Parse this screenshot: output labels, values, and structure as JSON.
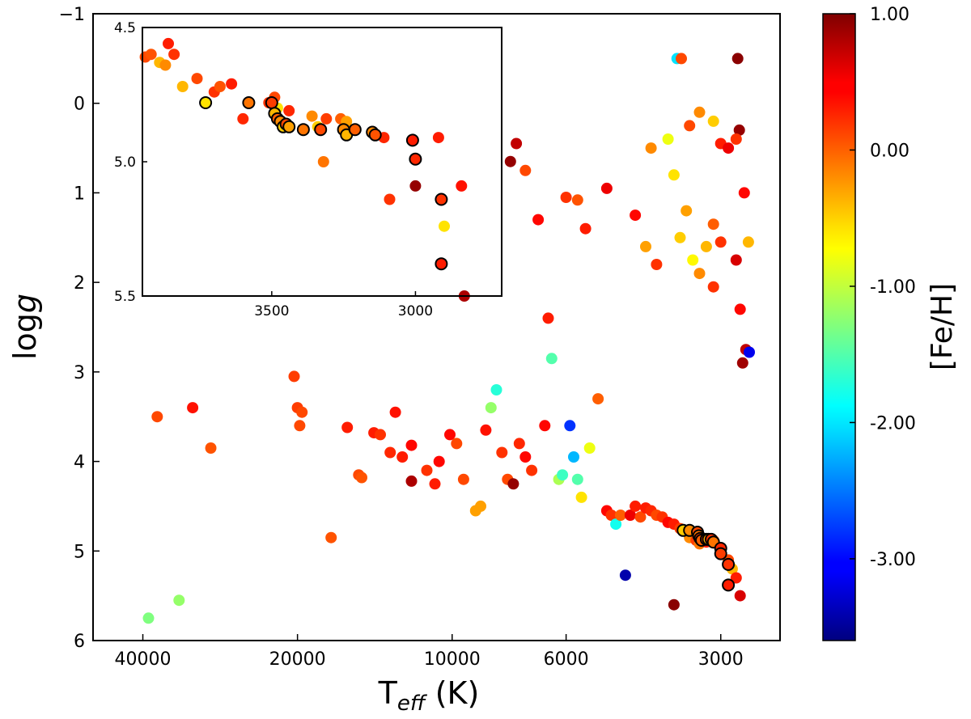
{
  "chart_data": [
    {
      "type": "scatter",
      "role": "main",
      "xlabel_main": "T",
      "xlabel_sub": "eff",
      "xlabel_unit": " (K)",
      "ylabel_prefix": "log",
      "ylabel_italic": "g",
      "x_scale": "log",
      "xlim": [
        50000,
        2300
      ],
      "ylim": [
        -1,
        6
      ],
      "y_inverted": true,
      "x_ticks": [
        {
          "value": 40000,
          "label": "40000"
        },
        {
          "value": 20000,
          "label": "20000"
        },
        {
          "value": 10000,
          "label": "10000"
        },
        {
          "value": 6000,
          "label": "6000"
        },
        {
          "value": 3000,
          "label": "3000"
        }
      ],
      "y_ticks": [
        {
          "value": -1,
          "label": "−1"
        },
        {
          "value": 0,
          "label": "0"
        },
        {
          "value": 1,
          "label": "1"
        },
        {
          "value": 2,
          "label": "2"
        },
        {
          "value": 3,
          "label": "3"
        },
        {
          "value": 4,
          "label": "4"
        },
        {
          "value": 5,
          "label": "5"
        },
        {
          "value": 6,
          "label": "6"
        }
      ],
      "series": [
        {
          "name": "stars",
          "columns": [
            "teff",
            "logg",
            "feh"
          ],
          "points": [
            [
              39000,
              5.75,
              -1.3
            ],
            [
              37500,
              3.5,
              0.1
            ],
            [
              34000,
              5.55,
              -1.2
            ],
            [
              32000,
              3.4,
              0.35
            ],
            [
              29500,
              3.85,
              0.05
            ],
            [
              20300,
              3.05,
              0.15
            ],
            [
              20000,
              3.4,
              0.15
            ],
            [
              19800,
              3.6,
              0.1
            ],
            [
              19600,
              3.45,
              0.1
            ],
            [
              17200,
              4.85,
              0.05
            ],
            [
              16000,
              3.62,
              0.3
            ],
            [
              15200,
              4.15,
              0.1
            ],
            [
              15000,
              4.18,
              0.05
            ],
            [
              14200,
              3.68,
              0.3
            ],
            [
              13800,
              3.7,
              0.2
            ],
            [
              13200,
              3.9,
              0.25
            ],
            [
              12900,
              3.45,
              0.35
            ],
            [
              12500,
              3.95,
              0.3
            ],
            [
              12000,
              3.82,
              0.4
            ],
            [
              12000,
              4.22,
              0.8
            ],
            [
              11200,
              4.1,
              0.2
            ],
            [
              10800,
              4.25,
              0.3
            ],
            [
              10600,
              4.0,
              0.4
            ],
            [
              10100,
              3.7,
              0.4
            ],
            [
              9800,
              3.8,
              0.1
            ],
            [
              9500,
              4.2,
              0.1
            ],
            [
              9000,
              4.55,
              -0.3
            ],
            [
              8800,
              4.5,
              -0.3
            ],
            [
              8600,
              3.65,
              0.35
            ],
            [
              8400,
              3.4,
              -1.2
            ],
            [
              8200,
              3.2,
              -1.7
            ],
            [
              8000,
              3.9,
              0.2
            ],
            [
              7800,
              4.2,
              0.1
            ],
            [
              7600,
              4.25,
              0.9
            ],
            [
              7400,
              3.8,
              0.25
            ],
            [
              7200,
              3.95,
              0.4
            ],
            [
              7000,
              4.1,
              0.2
            ],
            [
              6800,
              1.3,
              0.4
            ],
            [
              6600,
              3.6,
              0.4
            ],
            [
              6500,
              2.4,
              0.3
            ],
            [
              6400,
              2.85,
              -1.5
            ],
            [
              6200,
              4.2,
              -1.1
            ],
            [
              6100,
              4.15,
              -1.6
            ],
            [
              6000,
              1.05,
              0.2
            ],
            [
              5900,
              3.6,
              -2.8
            ],
            [
              5800,
              3.95,
              -2.2
            ],
            [
              5700,
              4.2,
              -1.5
            ],
            [
              5600,
              4.4,
              -0.6
            ],
            [
              5500,
              1.4,
              0.3
            ],
            [
              5400,
              3.85,
              -0.8
            ],
            [
              5200,
              3.3,
              0.0
            ],
            [
              5000,
              4.55,
              0.4
            ],
            [
              4900,
              4.6,
              0.2
            ],
            [
              4800,
              4.7,
              -1.8
            ],
            [
              4700,
              4.6,
              0.0
            ],
            [
              4600,
              5.27,
              -3.4
            ],
            [
              4500,
              4.6,
              0.5
            ],
            [
              4400,
              4.5,
              0.3
            ],
            [
              4300,
              4.62,
              0.1
            ],
            [
              4200,
              4.52,
              0.3
            ],
            [
              4100,
              4.55,
              0.25
            ],
            [
              4000,
              4.6,
              0.1
            ],
            [
              3900,
              4.62,
              0.2
            ],
            [
              3800,
              4.68,
              0.4
            ],
            [
              3700,
              4.7,
              0.3
            ],
            [
              3600,
              4.75,
              0.15
            ],
            [
              3500,
              4.78,
              0.1
            ],
            [
              3450,
              4.85,
              -0.2
            ],
            [
              3350,
              4.88,
              0.15
            ],
            [
              3300,
              4.92,
              -0.1
            ],
            [
              3200,
              4.9,
              0.3
            ],
            [
              3100,
              4.88,
              0.05
            ],
            [
              3000,
              5.0,
              0.2
            ],
            [
              2900,
              5.1,
              0.1
            ],
            [
              2850,
              5.2,
              -0.4
            ],
            [
              2800,
              5.3,
              0.3
            ],
            [
              2750,
              5.5,
              0.6
            ],
            [
              3700,
              5.6,
              0.95
            ],
            [
              3650,
              -0.5,
              -2.0
            ],
            [
              3580,
              -0.5,
              0.1
            ],
            [
              2780,
              -0.5,
              0.95
            ],
            [
              2760,
              0.3,
              0.9
            ],
            [
              2720,
              2.9,
              0.85
            ],
            [
              2680,
              2.75,
              0.7
            ],
            [
              2640,
              2.78,
              -3.1
            ],
            [
              2650,
              1.55,
              -0.4
            ],
            [
              7500,
              0.45,
              0.7
            ],
            [
              7700,
              0.65,
              0.9
            ],
            [
              7200,
              0.75,
              0.1
            ],
            [
              5700,
              1.08,
              0.05
            ],
            [
              5000,
              0.95,
              0.5
            ],
            [
              4400,
              1.25,
              0.4
            ],
            [
              4200,
              1.6,
              -0.3
            ],
            [
              4000,
              1.8,
              0.2
            ],
            [
              3600,
              1.5,
              -0.5
            ],
            [
              3400,
              1.75,
              -0.7
            ],
            [
              3300,
              1.9,
              -0.2
            ],
            [
              3200,
              1.6,
              -0.4
            ],
            [
              3100,
              1.35,
              0.0
            ],
            [
              3000,
              1.55,
              0.2
            ],
            [
              3500,
              1.2,
              -0.3
            ],
            [
              3700,
              0.8,
              -0.6
            ],
            [
              3800,
              0.4,
              -0.8
            ],
            [
              4100,
              0.5,
              -0.2
            ],
            [
              3000,
              0.45,
              0.3
            ],
            [
              2900,
              0.5,
              0.5
            ],
            [
              2800,
              0.4,
              0.2
            ],
            [
              3100,
              0.2,
              -0.5
            ],
            [
              3300,
              0.1,
              -0.2
            ],
            [
              3450,
              0.25,
              0.1
            ],
            [
              2700,
              1.0,
              0.4
            ],
            [
              2800,
              1.75,
              0.6
            ],
            [
              2750,
              2.3,
              0.4
            ],
            [
              3100,
              2.05,
              0.2
            ]
          ]
        },
        {
          "name": "highlighted",
          "columns": [
            "teff",
            "logg",
            "feh"
          ],
          "points": [
            [
              3550,
              4.77,
              -0.5
            ],
            [
              3450,
              4.77,
              -0.2
            ],
            [
              3330,
              4.79,
              0.1
            ],
            [
              3310,
              4.83,
              -0.1
            ],
            [
              3290,
              4.86,
              0.15
            ],
            [
              3270,
              4.88,
              0.0
            ],
            [
              3200,
              4.87,
              0.1
            ],
            [
              3170,
              4.87,
              -0.3
            ],
            [
              3130,
              4.87,
              0.2
            ],
            [
              3100,
              4.9,
              -0.1
            ],
            [
              3000,
              4.97,
              0.25
            ],
            [
              3000,
              5.03,
              0.15
            ],
            [
              2900,
              5.15,
              0.2
            ],
            [
              2900,
              5.38,
              0.3
            ]
          ]
        }
      ]
    },
    {
      "type": "scatter",
      "role": "inset",
      "x_scale": "linear",
      "xlim": [
        3950,
        2700
      ],
      "ylim": [
        4.5,
        5.5
      ],
      "y_inverted": true,
      "x_ticks": [
        {
          "value": 3500,
          "label": "3500"
        },
        {
          "value": 3000,
          "label": "3000"
        }
      ],
      "y_ticks": [
        {
          "value": 4.5,
          "label": "4.5"
        },
        {
          "value": 5.0,
          "label": "5.0"
        },
        {
          "value": 5.5,
          "label": "5.5"
        }
      ],
      "series": [
        {
          "name": "stars",
          "columns": [
            "teff",
            "logg",
            "feh"
          ],
          "points": [
            [
              3940,
              4.61,
              0.1
            ],
            [
              3920,
              4.6,
              0.05
            ],
            [
              3890,
              4.63,
              -0.4
            ],
            [
              3870,
              4.64,
              -0.2
            ],
            [
              3860,
              4.56,
              0.3
            ],
            [
              3840,
              4.6,
              0.2
            ],
            [
              3810,
              4.72,
              -0.4
            ],
            [
              3760,
              4.69,
              0.1
            ],
            [
              3700,
              4.74,
              0.2
            ],
            [
              3680,
              4.72,
              0.05
            ],
            [
              3640,
              4.71,
              0.3
            ],
            [
              3600,
              4.84,
              0.25
            ],
            [
              3510,
              4.78,
              0.2
            ],
            [
              3490,
              4.76,
              0.1
            ],
            [
              3480,
              4.8,
              -0.6
            ],
            [
              3440,
              4.81,
              0.25
            ],
            [
              3360,
              4.83,
              -0.2
            ],
            [
              3340,
              4.87,
              -0.5
            ],
            [
              3310,
              4.84,
              0.15
            ],
            [
              3260,
              4.84,
              0.0
            ],
            [
              3240,
              4.85,
              -0.3
            ],
            [
              3320,
              5.0,
              -0.1
            ],
            [
              3110,
              4.91,
              0.25
            ],
            [
              3090,
              5.14,
              0.2
            ],
            [
              3000,
              5.09,
              0.9
            ],
            [
              2900,
              5.24,
              -0.6
            ],
            [
              2920,
              4.91,
              0.3
            ],
            [
              2840,
              5.09,
              0.35
            ],
            [
              2830,
              5.5,
              0.8
            ]
          ]
        },
        {
          "name": "highlighted",
          "columns": [
            "teff",
            "logg",
            "feh"
          ],
          "points": [
            [
              3730,
              4.78,
              -0.6
            ],
            [
              3580,
              4.78,
              -0.1
            ],
            [
              3500,
              4.78,
              0.15
            ],
            [
              3490,
              4.82,
              -0.4
            ],
            [
              3480,
              4.84,
              0.0
            ],
            [
              3470,
              4.85,
              -0.2
            ],
            [
              3460,
              4.87,
              -0.5
            ],
            [
              3450,
              4.86,
              0.1
            ],
            [
              3440,
              4.87,
              -0.3
            ],
            [
              3390,
              4.88,
              -0.1
            ],
            [
              3330,
              4.88,
              0.1
            ],
            [
              3250,
              4.88,
              -0.2
            ],
            [
              3240,
              4.9,
              -0.4
            ],
            [
              3210,
              4.88,
              0.0
            ],
            [
              3150,
              4.89,
              -0.2
            ],
            [
              3140,
              4.9,
              0.05
            ],
            [
              3010,
              4.92,
              0.3
            ],
            [
              3000,
              4.99,
              0.25
            ],
            [
              2910,
              5.14,
              0.2
            ],
            [
              2910,
              5.38,
              0.3
            ]
          ]
        }
      ]
    },
    {
      "type": "colorbar",
      "role": "colorbar",
      "label": "[Fe/H]",
      "range": [
        -3.6,
        1.0
      ],
      "colormap": "jet",
      "ticks": [
        {
          "value": 1.0,
          "label": "1.00"
        },
        {
          "value": 0.0,
          "label": "0.00"
        },
        {
          "value": -1.0,
          "label": "-1.00"
        },
        {
          "value": -2.0,
          "label": "-2.00"
        },
        {
          "value": -3.0,
          "label": "-3.00"
        }
      ]
    }
  ],
  "colors": {
    "jet": [
      "#00007f",
      "#0000ff",
      "#007fff",
      "#00ffff",
      "#7fff7f",
      "#ffff00",
      "#ff7f00",
      "#ff0000",
      "#7f0000"
    ],
    "highlight_edge": "#000000",
    "axes": "#000000"
  }
}
